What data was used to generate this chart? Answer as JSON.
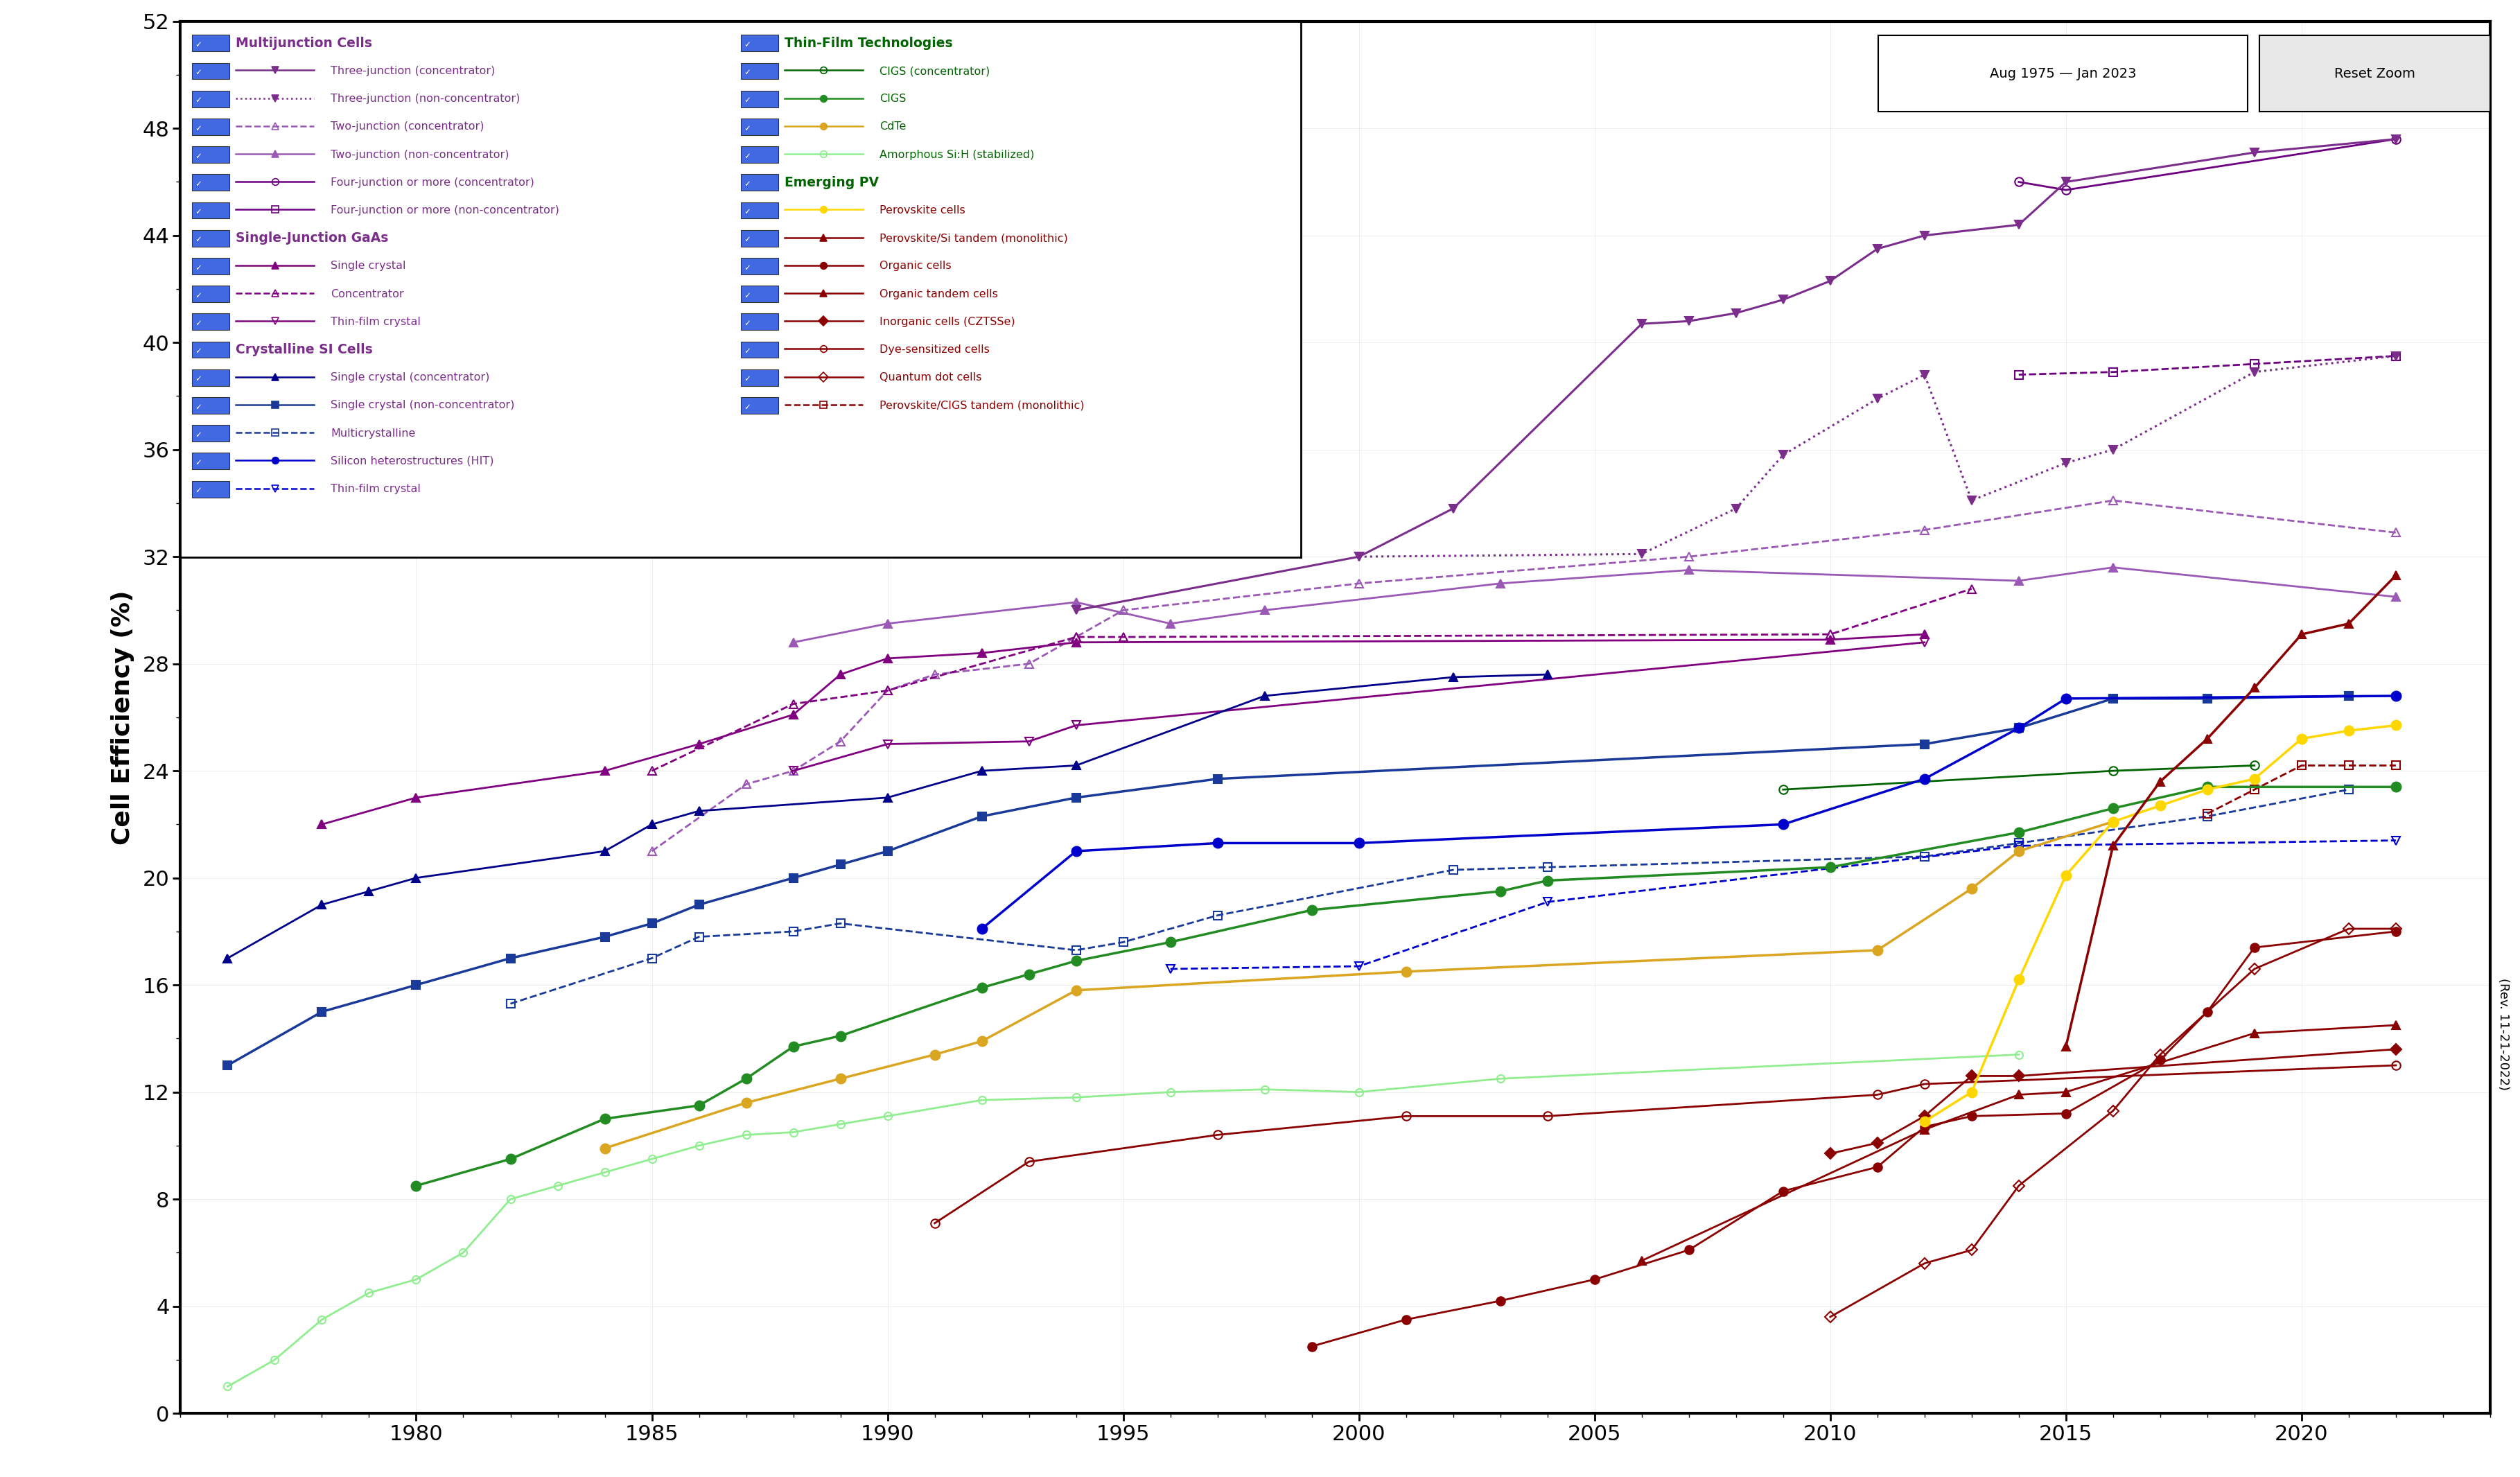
{
  "ylabel": "Cell Efficiency (%)",
  "xlim": [
    1975,
    2024
  ],
  "ylim": [
    0,
    52
  ],
  "yticks": [
    0,
    4,
    8,
    12,
    16,
    20,
    24,
    28,
    32,
    36,
    40,
    44,
    48,
    52
  ],
  "xticks": [
    1980,
    1985,
    1990,
    1995,
    2000,
    2005,
    2010,
    2015,
    2020
  ],
  "date_label": "Aug 1975 — Jan 2023",
  "rev_label": "(Rev. 11-21-2022)",
  "three_junc_conc": {
    "color": "#7B2D8B",
    "ls": "-",
    "marker": "v",
    "filled": true,
    "lw": 2.2,
    "ms": 9,
    "data": [
      [
        1994,
        30
      ],
      [
        2000,
        32
      ],
      [
        2002,
        33.8
      ],
      [
        2006,
        40.7
      ],
      [
        2007,
        40.8
      ],
      [
        2008,
        41.1
      ],
      [
        2009,
        41.6
      ],
      [
        2010,
        42.3
      ],
      [
        2011,
        43.5
      ],
      [
        2012,
        44.0
      ],
      [
        2014,
        44.4
      ],
      [
        2015,
        46.0
      ],
      [
        2019,
        47.1
      ],
      [
        2022,
        47.6
      ]
    ]
  },
  "three_junc_nonc": {
    "color": "#7B2D8B",
    "ls": ":",
    "marker": "v",
    "filled": true,
    "lw": 2.2,
    "ms": 9,
    "data": [
      [
        2000,
        32.0
      ],
      [
        2006,
        32.1
      ],
      [
        2008,
        33.8
      ],
      [
        2009,
        35.8
      ],
      [
        2011,
        37.9
      ],
      [
        2012,
        38.8
      ],
      [
        2013,
        34.1
      ],
      [
        2015,
        35.5
      ],
      [
        2016,
        36.0
      ],
      [
        2019,
        38.9
      ],
      [
        2022,
        39.5
      ]
    ]
  },
  "two_junc_conc": {
    "color": "#9B59B6",
    "ls": "--",
    "marker": "^",
    "filled": false,
    "lw": 2.0,
    "ms": 9,
    "data": [
      [
        1985,
        21.0
      ],
      [
        1987,
        23.5
      ],
      [
        1988,
        24.0
      ],
      [
        1989,
        25.1
      ],
      [
        1990,
        27.0
      ],
      [
        1991,
        27.6
      ],
      [
        1993,
        28.0
      ],
      [
        1994,
        29.0
      ],
      [
        1995,
        30.0
      ],
      [
        2000,
        31.0
      ],
      [
        2007,
        32.0
      ],
      [
        2012,
        33.0
      ],
      [
        2016,
        34.1
      ],
      [
        2022,
        32.9
      ]
    ]
  },
  "two_junc_nonc": {
    "color": "#9B59B6",
    "ls": "-",
    "marker": "^",
    "filled": true,
    "lw": 2.0,
    "ms": 9,
    "data": [
      [
        1988,
        28.8
      ],
      [
        1990,
        29.5
      ],
      [
        1994,
        30.3
      ],
      [
        1996,
        29.5
      ],
      [
        1998,
        30.0
      ],
      [
        2003,
        31.0
      ],
      [
        2007,
        31.5
      ],
      [
        2014,
        31.1
      ],
      [
        2016,
        31.6
      ],
      [
        2022,
        30.5
      ]
    ]
  },
  "four_junc_conc": {
    "color": "#6C0080",
    "ls": "-",
    "marker": "o",
    "filled": false,
    "lw": 2.0,
    "ms": 9,
    "data": [
      [
        2014,
        46.0
      ],
      [
        2015,
        45.7
      ],
      [
        2022,
        47.6
      ]
    ]
  },
  "four_junc_nonc": {
    "color": "#6C0080",
    "ls": "--",
    "marker": "s",
    "filled": false,
    "lw": 2.0,
    "ms": 9,
    "data": [
      [
        2014,
        38.8
      ],
      [
        2016,
        38.9
      ],
      [
        2019,
        39.2
      ],
      [
        2022,
        39.5
      ]
    ]
  },
  "gaas_single": {
    "color": "#800080",
    "ls": "-",
    "marker": "^",
    "filled": true,
    "lw": 2.0,
    "ms": 9,
    "data": [
      [
        1978,
        22.0
      ],
      [
        1980,
        23.0
      ],
      [
        1984,
        24.0
      ],
      [
        1986,
        25.0
      ],
      [
        1988,
        26.1
      ],
      [
        1989,
        27.6
      ],
      [
        1990,
        28.2
      ],
      [
        1992,
        28.4
      ],
      [
        1994,
        28.8
      ],
      [
        2010,
        28.9
      ],
      [
        2012,
        29.1
      ]
    ]
  },
  "gaas_conc": {
    "color": "#800080",
    "ls": "--",
    "marker": "^",
    "filled": false,
    "lw": 2.0,
    "ms": 9,
    "data": [
      [
        1985,
        24.0
      ],
      [
        1988,
        26.5
      ],
      [
        1990,
        27.0
      ],
      [
        1994,
        29.0
      ],
      [
        1995,
        29.0
      ],
      [
        2010,
        29.1
      ],
      [
        2013,
        30.8
      ]
    ]
  },
  "gaas_thinfilm": {
    "color": "#800080",
    "ls": "-",
    "marker": "v",
    "filled": false,
    "lw": 2.0,
    "ms": 9,
    "data": [
      [
        1988,
        24.0
      ],
      [
        1990,
        25.0
      ],
      [
        1993,
        25.1
      ],
      [
        1994,
        25.7
      ],
      [
        2012,
        28.8
      ]
    ]
  },
  "si_single_conc": {
    "color": "#00008B",
    "ls": "-",
    "marker": "^",
    "filled": true,
    "lw": 2.0,
    "ms": 9,
    "data": [
      [
        1976,
        17.0
      ],
      [
        1978,
        19.0
      ],
      [
        1979,
        19.5
      ],
      [
        1980,
        20.0
      ],
      [
        1984,
        21.0
      ],
      [
        1985,
        22.0
      ],
      [
        1986,
        22.5
      ],
      [
        1990,
        23.0
      ],
      [
        1992,
        24.0
      ],
      [
        1994,
        24.2
      ],
      [
        1998,
        26.8
      ],
      [
        2002,
        27.5
      ],
      [
        2004,
        27.6
      ]
    ]
  },
  "si_single_nonc": {
    "color": "#1a3a9a",
    "ls": "-",
    "marker": "s",
    "filled": true,
    "lw": 2.5,
    "ms": 9,
    "data": [
      [
        1976,
        13.0
      ],
      [
        1978,
        15.0
      ],
      [
        1980,
        16.0
      ],
      [
        1982,
        17.0
      ],
      [
        1984,
        17.8
      ],
      [
        1985,
        18.3
      ],
      [
        1986,
        19.0
      ],
      [
        1988,
        20.0
      ],
      [
        1989,
        20.5
      ],
      [
        1990,
        21.0
      ],
      [
        1992,
        22.3
      ],
      [
        1994,
        23.0
      ],
      [
        1997,
        23.7
      ],
      [
        2012,
        25.0
      ],
      [
        2014,
        25.6
      ],
      [
        2016,
        26.7
      ],
      [
        2018,
        26.7
      ],
      [
        2021,
        26.8
      ]
    ]
  },
  "si_multi": {
    "color": "#1a3a9a",
    "ls": "--",
    "marker": "s",
    "filled": false,
    "lw": 2.0,
    "ms": 9,
    "data": [
      [
        1982,
        15.3
      ],
      [
        1985,
        17.0
      ],
      [
        1986,
        17.8
      ],
      [
        1988,
        18.0
      ],
      [
        1989,
        18.3
      ],
      [
        1994,
        17.3
      ],
      [
        1995,
        17.6
      ],
      [
        1997,
        18.6
      ],
      [
        2002,
        20.3
      ],
      [
        2004,
        20.4
      ],
      [
        2012,
        20.8
      ],
      [
        2014,
        21.3
      ],
      [
        2018,
        22.3
      ],
      [
        2021,
        23.3
      ]
    ]
  },
  "si_hit": {
    "color": "#0000CD",
    "ls": "-",
    "marker": "o",
    "filled": true,
    "lw": 2.5,
    "ms": 10,
    "data": [
      [
        1992,
        18.1
      ],
      [
        1994,
        21.0
      ],
      [
        1997,
        21.3
      ],
      [
        2000,
        21.3
      ],
      [
        2009,
        22.0
      ],
      [
        2012,
        23.7
      ],
      [
        2014,
        25.6
      ],
      [
        2015,
        26.7
      ],
      [
        2022,
        26.8
      ]
    ]
  },
  "si_thinfilm": {
    "color": "#0000CD",
    "ls": "--",
    "marker": "v",
    "filled": false,
    "lw": 2.0,
    "ms": 9,
    "data": [
      [
        1996,
        16.6
      ],
      [
        2000,
        16.7
      ],
      [
        2004,
        19.1
      ],
      [
        2014,
        21.2
      ],
      [
        2022,
        21.4
      ]
    ]
  },
  "cigs_conc": {
    "color": "#006400",
    "ls": "-",
    "marker": "o",
    "filled": false,
    "lw": 2.0,
    "ms": 9,
    "data": [
      [
        2009,
        23.3
      ],
      [
        2016,
        24.0
      ],
      [
        2019,
        24.2
      ]
    ]
  },
  "cigs": {
    "color": "#228B22",
    "ls": "-",
    "marker": "o",
    "filled": true,
    "lw": 2.5,
    "ms": 10,
    "data": [
      [
        1980,
        8.5
      ],
      [
        1982,
        9.5
      ],
      [
        1984,
        11.0
      ],
      [
        1986,
        11.5
      ],
      [
        1987,
        12.5
      ],
      [
        1988,
        13.7
      ],
      [
        1989,
        14.1
      ],
      [
        1992,
        15.9
      ],
      [
        1993,
        16.4
      ],
      [
        1994,
        16.9
      ],
      [
        1996,
        17.6
      ],
      [
        1999,
        18.8
      ],
      [
        2003,
        19.5
      ],
      [
        2004,
        19.9
      ],
      [
        2010,
        20.4
      ],
      [
        2014,
        21.7
      ],
      [
        2016,
        22.6
      ],
      [
        2018,
        23.4
      ],
      [
        2022,
        23.4
      ]
    ]
  },
  "cdte": {
    "color": "#DAA520",
    "ls": "-",
    "marker": "o",
    "filled": true,
    "lw": 2.5,
    "ms": 10,
    "data": [
      [
        1984,
        9.9
      ],
      [
        1987,
        11.6
      ],
      [
        1989,
        12.5
      ],
      [
        1991,
        13.4
      ],
      [
        1992,
        13.9
      ],
      [
        1994,
        15.8
      ],
      [
        2001,
        16.5
      ],
      [
        2011,
        17.3
      ],
      [
        2013,
        19.6
      ],
      [
        2014,
        21.0
      ],
      [
        2016,
        22.1
      ]
    ]
  },
  "amorphous": {
    "color": "#90EE90",
    "ls": "-",
    "marker": "o",
    "filled": false,
    "lw": 2.0,
    "ms": 8,
    "data": [
      [
        1976,
        1.0
      ],
      [
        1977,
        2.0
      ],
      [
        1978,
        3.5
      ],
      [
        1979,
        4.5
      ],
      [
        1980,
        5.0
      ],
      [
        1981,
        6.0
      ],
      [
        1982,
        8.0
      ],
      [
        1983,
        8.5
      ],
      [
        1984,
        9.0
      ],
      [
        1985,
        9.5
      ],
      [
        1986,
        10.0
      ],
      [
        1987,
        10.4
      ],
      [
        1988,
        10.5
      ],
      [
        1989,
        10.8
      ],
      [
        1990,
        11.1
      ],
      [
        1992,
        11.7
      ],
      [
        1994,
        11.8
      ],
      [
        1996,
        12.0
      ],
      [
        1998,
        12.1
      ],
      [
        2000,
        12.0
      ],
      [
        2003,
        12.5
      ],
      [
        2014,
        13.4
      ]
    ]
  },
  "perovskite": {
    "color": "#FFD700",
    "ls": "-",
    "marker": "o",
    "filled": true,
    "lw": 2.5,
    "ms": 10,
    "data": [
      [
        2012,
        10.9
      ],
      [
        2013,
        12.0
      ],
      [
        2014,
        16.2
      ],
      [
        2015,
        20.1
      ],
      [
        2016,
        22.1
      ],
      [
        2017,
        22.7
      ],
      [
        2018,
        23.3
      ],
      [
        2019,
        23.7
      ],
      [
        2020,
        25.2
      ],
      [
        2021,
        25.5
      ],
      [
        2022,
        25.7
      ]
    ]
  },
  "perov_si": {
    "color": "#8B0000",
    "ls": "-",
    "marker": "^",
    "filled": true,
    "lw": 2.5,
    "ms": 9,
    "data": [
      [
        2015,
        13.7
      ],
      [
        2016,
        21.2
      ],
      [
        2017,
        23.6
      ],
      [
        2018,
        25.2
      ],
      [
        2019,
        27.1
      ],
      [
        2020,
        29.1
      ],
      [
        2021,
        29.5
      ],
      [
        2022,
        31.3
      ]
    ]
  },
  "organic": {
    "color": "#8B0000",
    "ls": "-",
    "marker": "o",
    "filled": true,
    "lw": 2.0,
    "ms": 9,
    "data": [
      [
        1999,
        2.5
      ],
      [
        2001,
        3.5
      ],
      [
        2003,
        4.2
      ],
      [
        2005,
        5.0
      ],
      [
        2007,
        6.1
      ],
      [
        2009,
        8.3
      ],
      [
        2011,
        9.2
      ],
      [
        2012,
        10.7
      ],
      [
        2013,
        11.1
      ],
      [
        2015,
        11.2
      ],
      [
        2017,
        13.2
      ],
      [
        2018,
        15.0
      ],
      [
        2019,
        17.4
      ],
      [
        2022,
        18.0
      ]
    ]
  },
  "organic_tandem": {
    "color": "#8B0000",
    "ls": "-",
    "marker": "^",
    "filled": true,
    "lw": 2.0,
    "ms": 9,
    "data": [
      [
        2006,
        5.7
      ],
      [
        2012,
        10.6
      ],
      [
        2014,
        11.9
      ],
      [
        2015,
        12.0
      ],
      [
        2019,
        14.2
      ],
      [
        2022,
        14.5
      ]
    ]
  },
  "inorganic_czts": {
    "color": "#8B0000",
    "ls": "-",
    "marker": "D",
    "filled": true,
    "lw": 2.0,
    "ms": 8,
    "data": [
      [
        2010,
        9.7
      ],
      [
        2011,
        10.1
      ],
      [
        2012,
        11.1
      ],
      [
        2013,
        12.6
      ],
      [
        2014,
        12.6
      ],
      [
        2022,
        13.6
      ]
    ]
  },
  "dye_sensitized": {
    "color": "#8B0000",
    "ls": "-",
    "marker": "o",
    "filled": false,
    "lw": 2.0,
    "ms": 9,
    "data": [
      [
        1991,
        7.1
      ],
      [
        1993,
        9.4
      ],
      [
        1997,
        10.4
      ],
      [
        2001,
        11.1
      ],
      [
        2004,
        11.1
      ],
      [
        2011,
        11.9
      ],
      [
        2012,
        12.3
      ],
      [
        2022,
        13.0
      ]
    ]
  },
  "quantum_dot": {
    "color": "#8B0000",
    "ls": "-",
    "marker": "D",
    "filled": false,
    "lw": 2.0,
    "ms": 8,
    "data": [
      [
        2010,
        3.6
      ],
      [
        2012,
        5.6
      ],
      [
        2013,
        6.1
      ],
      [
        2014,
        8.5
      ],
      [
        2016,
        11.3
      ],
      [
        2017,
        13.4
      ],
      [
        2019,
        16.6
      ],
      [
        2021,
        18.1
      ],
      [
        2022,
        18.1
      ]
    ]
  },
  "perov_cigs": {
    "color": "#8B0000",
    "ls": "--",
    "marker": "s",
    "filled": false,
    "lw": 2.0,
    "ms": 9,
    "data": [
      [
        2018,
        22.4
      ],
      [
        2019,
        23.3
      ],
      [
        2020,
        24.2
      ],
      [
        2021,
        24.2
      ],
      [
        2022,
        24.2
      ]
    ]
  }
}
